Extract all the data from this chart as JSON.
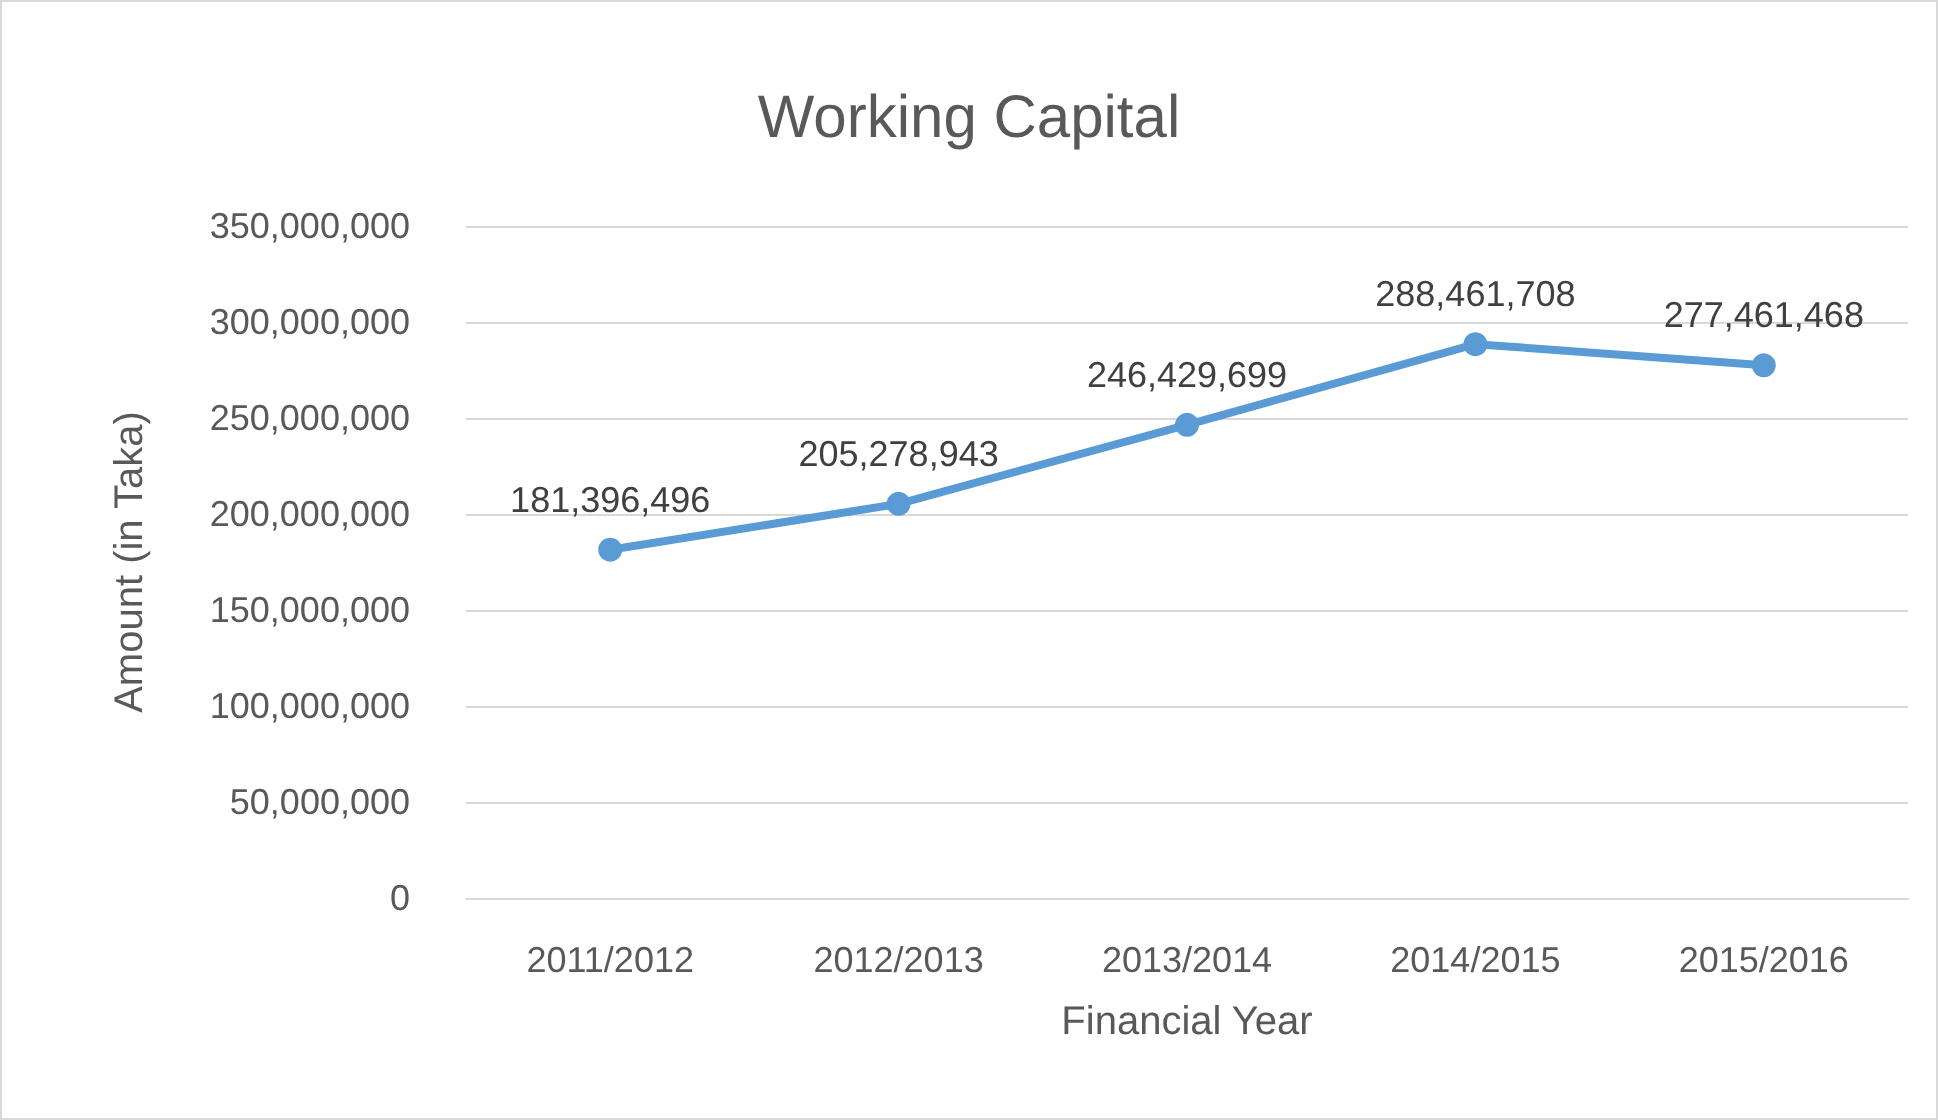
{
  "chart_data": {
    "type": "line",
    "title": "Working Capital",
    "xlabel": "Financial Year",
    "ylabel": "Amount (in Taka)",
    "categories": [
      "2011/2012",
      "2012/2013",
      "2013/2014",
      "2014/2015",
      "2015/2016"
    ],
    "series": [
      {
        "color": "#5b9bd5",
        "values": [
          181396496,
          205278943,
          246429699,
          288461708,
          277461468
        ],
        "value_labels": [
          "181,396,496",
          "205,278,943",
          "246,429,699",
          "288,461,708",
          "277,461,468"
        ]
      }
    ],
    "ylim": [
      0,
      350000000
    ],
    "yticks": [
      0,
      {
        "value": 50000000,
        "label": "50,000,000"
      },
      {
        "value": 100000000,
        "label": "100,000,000"
      },
      {
        "value": 150000000,
        "label": "150,000,000"
      },
      {
        "value": 200000000,
        "label": "200,000,000"
      },
      {
        "value": 250000000,
        "label": "250,000,000"
      },
      {
        "value": 300000000,
        "label": "300,000,000"
      },
      {
        "value": 350000000,
        "label": "350,000,000"
      }
    ],
    "grid": "y",
    "marker": "circle",
    "line_style": "solid"
  }
}
